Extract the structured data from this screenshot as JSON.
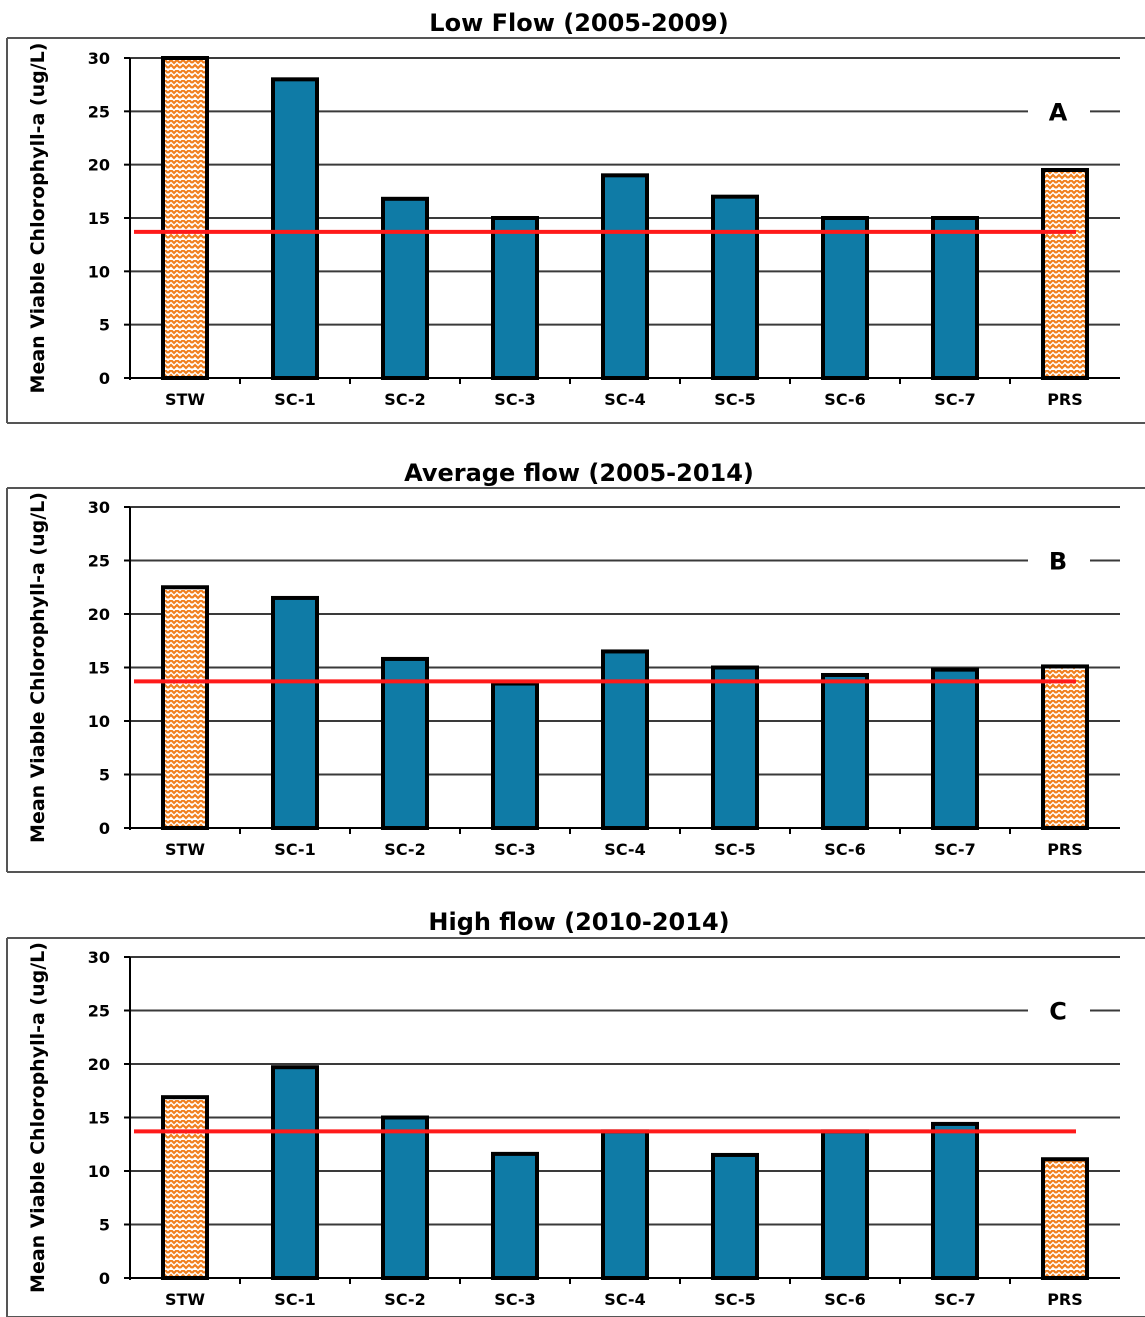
{
  "chart_data": [
    {
      "type": "bar",
      "title": "Low Flow (2005-2009)",
      "panel_label": "A",
      "ylabel": "Mean Viable Chlorophyll-a (ug/L)",
      "xlabel": "",
      "ylim": [
        0,
        30
      ],
      "yticks": [
        "0",
        "5",
        "10",
        "15",
        "20",
        "25",
        "30"
      ],
      "categories": [
        "STW",
        "SC-1",
        "SC-2",
        "SC-3",
        "SC-4",
        "SC-5",
        "SC-6",
        "SC-7",
        "PRS"
      ],
      "values": [
        30,
        28,
        16.8,
        15,
        19,
        17,
        15,
        15,
        19.5
      ],
      "bar_styles": [
        "hatched",
        "solid",
        "solid",
        "solid",
        "solid",
        "solid",
        "solid",
        "solid",
        "hatched"
      ],
      "reference_line": 13.7,
      "grid": true
    },
    {
      "type": "bar",
      "title": "Average flow (2005-2014)",
      "panel_label": "B",
      "ylabel": "Mean Viable Chlorophyll-a (ug/L)",
      "xlabel": "",
      "ylim": [
        0,
        30
      ],
      "yticks": [
        "0",
        "5",
        "10",
        "15",
        "20",
        "25",
        "30"
      ],
      "categories": [
        "STW",
        "SC-1",
        "SC-2",
        "SC-3",
        "SC-4",
        "SC-5",
        "SC-6",
        "SC-7",
        "PRS"
      ],
      "values": [
        22.5,
        21.5,
        15.8,
        13.5,
        16.5,
        15,
        14.3,
        14.8,
        15.1
      ],
      "bar_styles": [
        "hatched",
        "solid",
        "solid",
        "solid",
        "solid",
        "solid",
        "solid",
        "solid",
        "hatched"
      ],
      "reference_line": 13.7,
      "grid": true
    },
    {
      "type": "bar",
      "title": "High flow (2010-2014)",
      "panel_label": "C",
      "ylabel": "Mean Viable Chlorophyll-a (ug/L)",
      "xlabel": "",
      "ylim": [
        0,
        30
      ],
      "yticks": [
        "0",
        "5",
        "10",
        "15",
        "20",
        "25",
        "30"
      ],
      "categories": [
        "STW",
        "SC-1",
        "SC-2",
        "SC-3",
        "SC-4",
        "SC-5",
        "SC-6",
        "SC-7",
        "PRS"
      ],
      "values": [
        16.9,
        19.7,
        15,
        11.6,
        13.7,
        11.5,
        13.7,
        14.4,
        11.1
      ],
      "bar_styles": [
        "hatched",
        "solid",
        "solid",
        "solid",
        "solid",
        "solid",
        "solid",
        "solid",
        "hatched"
      ],
      "reference_line": 13.7,
      "grid": true
    }
  ],
  "colors": {
    "solid_bar": "#0f7ba6",
    "hatched_fill": "#ffffff",
    "hatched_stroke": "#f07f1e",
    "bar_outline": "#000000",
    "reference_line": "#ff1a1a",
    "grid": "#3a3a3a"
  }
}
